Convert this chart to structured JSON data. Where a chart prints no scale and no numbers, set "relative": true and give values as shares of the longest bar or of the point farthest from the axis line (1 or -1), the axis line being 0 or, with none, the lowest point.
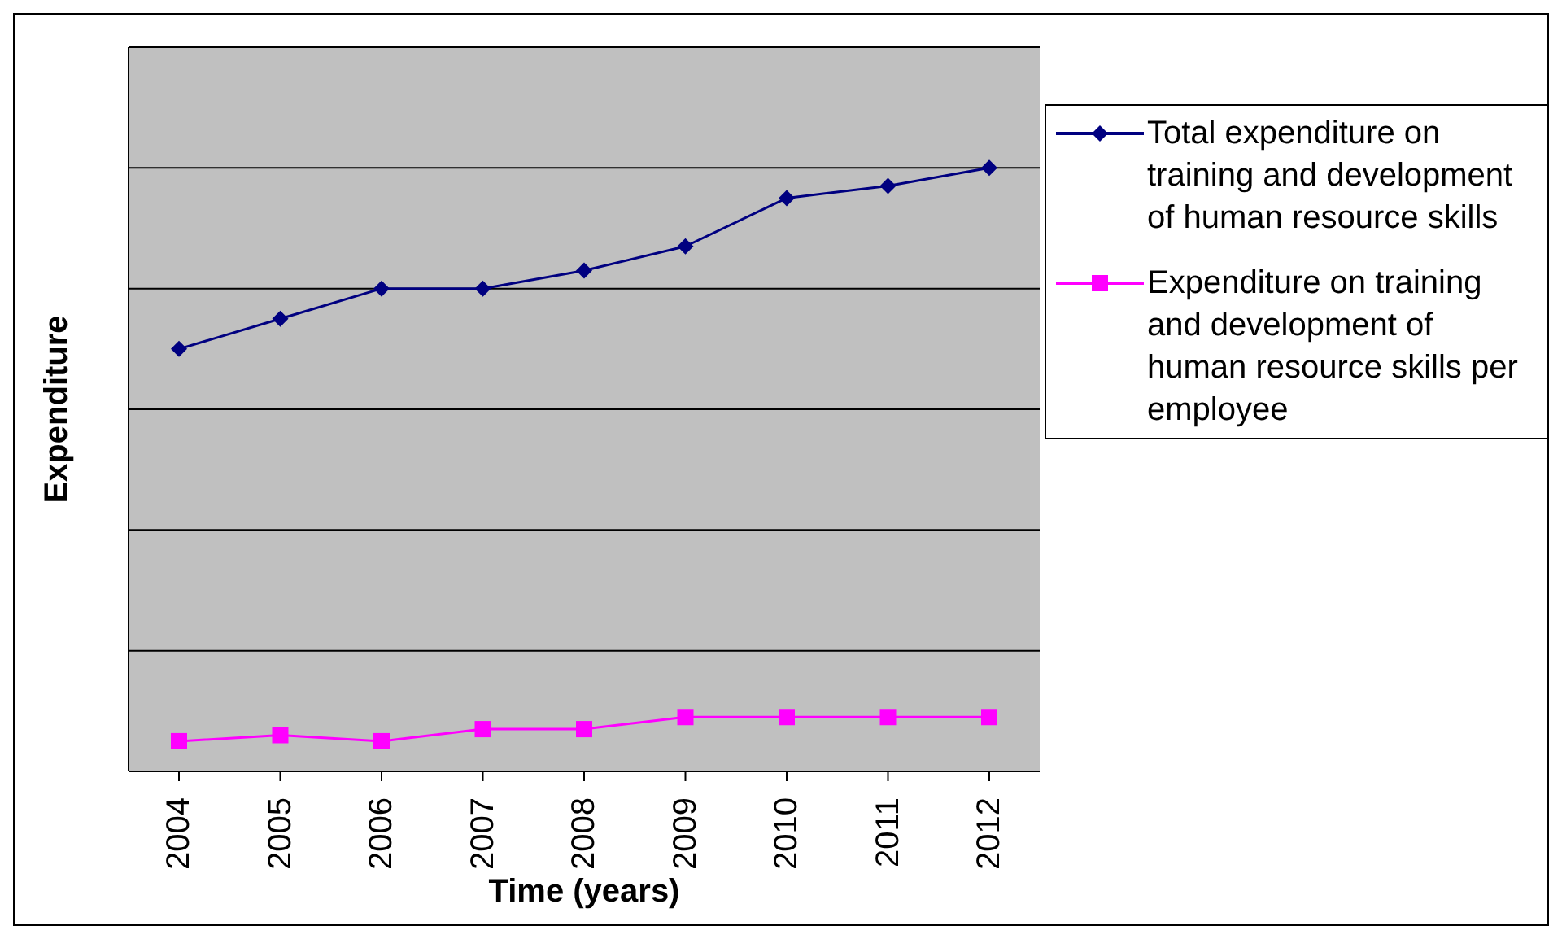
{
  "chart_data": {
    "type": "line",
    "relative": true,
    "xlabel": "Time (years)",
    "ylabel": "Expenditure",
    "categories": [
      "2004",
      "2005",
      "2006",
      "2007",
      "2008",
      "2009",
      "2010",
      "2011",
      "2012"
    ],
    "series": [
      {
        "name": "Total expenditure on training and development of human resource skills",
        "color": "#000080",
        "marker": "diamond",
        "values": [
          0.7,
          0.75,
          0.8,
          0.8,
          0.83,
          0.87,
          0.95,
          0.97,
          1
        ]
      },
      {
        "name": "Expenditure on training and development of human resource skills per employee",
        "color": "#ff00ff",
        "marker": "square",
        "values": [
          0.05,
          0.06,
          0.05,
          0.07,
          0.07,
          0.09,
          0.09,
          0.09,
          0.09
        ]
      }
    ],
    "grid": "y",
    "legend": "right",
    "line_style": "solid"
  }
}
